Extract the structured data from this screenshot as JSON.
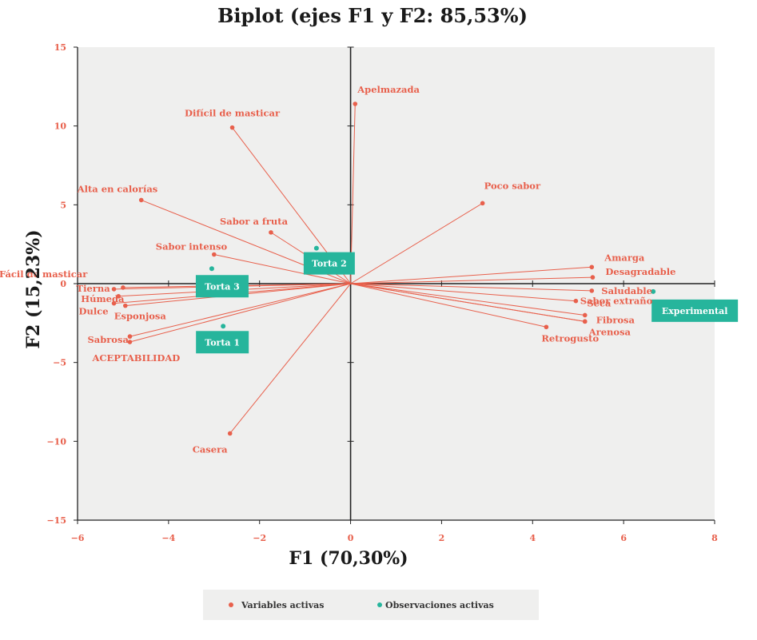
{
  "chart_data": {
    "type": "scatter",
    "title": "Biplot (ejes F1 y F2: 85,53%)",
    "xlabel": "F1 (70,30%)",
    "ylabel": "F2 (15,23%)",
    "xlim": [
      -6,
      8
    ],
    "ylim": [
      -15,
      15
    ],
    "x_ticks": [
      "-6",
      "-4",
      "-2",
      "0",
      "2",
      "4",
      "6",
      "8"
    ],
    "y_ticks": [
      "15",
      "10",
      "5",
      "0",
      "-5",
      "-10",
      "-15"
    ],
    "grid": false,
    "colors": {
      "variables": "#e8604c",
      "observations": "#26b59c",
      "plot_bg": "#efefee"
    },
    "legend_position": "bottom",
    "legend": [
      "Variables activas",
      "Observaciones activas"
    ],
    "variables": [
      {
        "name": "Apelmazada",
        "x": 0.1,
        "y": 11.4
      },
      {
        "name": "Difícil de masticar",
        "x": -2.6,
        "y": 9.9
      },
      {
        "name": "Alta en calorías",
        "x": -4.6,
        "y": 5.3
      },
      {
        "name": "Sabor a fruta",
        "x": -1.75,
        "y": 3.25
      },
      {
        "name": "Sabor intenso",
        "x": -3.0,
        "y": 1.85
      },
      {
        "name": "Fácil de masticar",
        "x": -5.0,
        "y": -0.25
      },
      {
        "name": "Tierna",
        "x": -5.2,
        "y": -0.35
      },
      {
        "name": "Húmeda",
        "x": -5.1,
        "y": -0.8
      },
      {
        "name": "Dulce",
        "x": -5.2,
        "y": -1.25
      },
      {
        "name": "Esponjosa",
        "x": -4.95,
        "y": -1.4
      },
      {
        "name": "Sabrosa",
        "x": -4.85,
        "y": -3.35
      },
      {
        "name": "ACEPTABILIDAD",
        "x": -4.85,
        "y": -3.7
      },
      {
        "name": "Casera",
        "x": -2.65,
        "y": -9.5
      },
      {
        "name": "Poco sabor",
        "x": 2.9,
        "y": 5.1
      },
      {
        "name": "Amarga",
        "x": 5.3,
        "y": 1.05
      },
      {
        "name": "Desagradable",
        "x": 5.32,
        "y": 0.4
      },
      {
        "name": "Saludable",
        "x": 5.3,
        "y": -0.45
      },
      {
        "name": "Seca",
        "x": 4.95,
        "y": -1.1
      },
      {
        "name": "Sabor extraño",
        "x": 5.15,
        "y": -2.0
      },
      {
        "name": "Fibrosa",
        "x": 5.15,
        "y": -2.4
      },
      {
        "name": "Arenosa",
        "x": 5.15,
        "y": -2.4
      },
      {
        "name": "Retrogusto",
        "x": 4.3,
        "y": -2.75
      }
    ],
    "observations": [
      {
        "name": "Torta 2",
        "x": -0.75,
        "y": 2.25
      },
      {
        "name": "Torta 3",
        "x": -3.05,
        "y": 0.95
      },
      {
        "name": "Torta 1",
        "x": -2.8,
        "y": -2.7
      },
      {
        "name": "Experimental",
        "x": 6.65,
        "y": -0.5
      }
    ]
  }
}
